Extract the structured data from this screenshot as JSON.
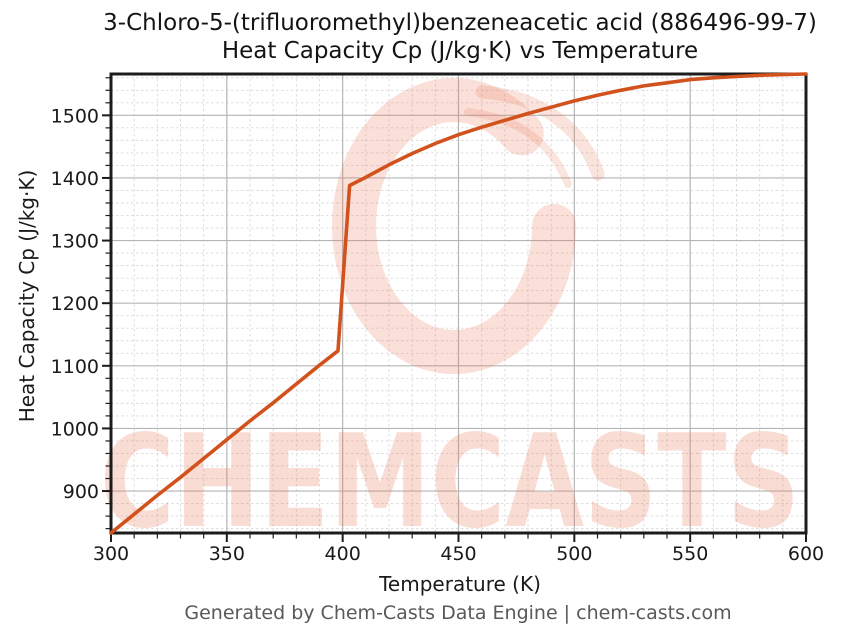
{
  "title": {
    "line1": "3-Chloro-5-(trifluoromethyl)benzeneacetic acid (886496-99-7)",
    "line2": "Heat Capacity Cp (J/kg·K) vs Temperature"
  },
  "footer": {
    "text": "Generated by Chem-Casts Data Engine | chem-casts.com"
  },
  "watermark": {
    "text": "CHEMCASTS"
  },
  "colors": {
    "line": "#d2521d",
    "spine": "#1c1c1c",
    "grid_major": "#b5b5b5",
    "grid_minor": "#d9d9d9",
    "tick_label": "#1a1a1a",
    "footer_text": "#595959",
    "watermark": "#e8714f"
  },
  "chart_data": {
    "type": "line",
    "title": "3-Chloro-5-(trifluoromethyl)benzeneacetic acid (886496-99-7) — Heat Capacity Cp (J/kg·K) vs Temperature",
    "xlabel": "Temperature (K)",
    "ylabel": "Heat Capacity Cp (J/kg·K)",
    "xlim": [
      300,
      600
    ],
    "ylim": [
      833,
      1566
    ],
    "xticks": [
      300,
      350,
      400,
      450,
      500,
      550,
      600
    ],
    "yticks": [
      900,
      1000,
      1100,
      1200,
      1300,
      1400,
      1500
    ],
    "x_minor_step": 10,
    "y_minor_step": 20,
    "grid": "major solid + minor dashed",
    "legend": "none",
    "series": [
      {
        "name": "Heat Capacity Cp (J/kg·K)",
        "x": [
          300,
          310,
          320,
          330,
          340,
          350,
          360,
          370,
          380,
          390,
          398,
          403,
          410,
          420,
          430,
          440,
          450,
          460,
          470,
          480,
          490,
          500,
          510,
          520,
          530,
          540,
          550,
          560,
          570,
          580,
          590,
          600
        ],
        "y": [
          833,
          863,
          893,
          922,
          952,
          982,
          1012,
          1041,
          1071,
          1101,
          1124,
          1388,
          1401,
          1421,
          1439,
          1455,
          1469,
          1481,
          1492,
          1503,
          1513,
          1523,
          1532,
          1540,
          1547,
          1552,
          1557,
          1560,
          1562,
          1564,
          1565,
          1566
        ]
      }
    ]
  }
}
